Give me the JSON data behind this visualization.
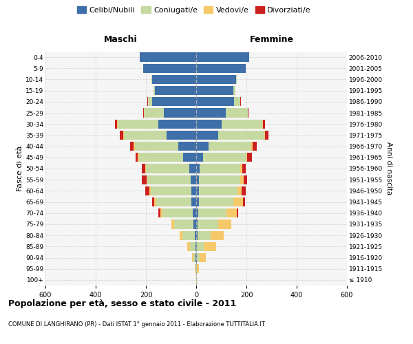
{
  "age_groups": [
    "100+",
    "95-99",
    "90-94",
    "85-89",
    "80-84",
    "75-79",
    "70-74",
    "65-69",
    "60-64",
    "55-59",
    "50-54",
    "45-49",
    "40-44",
    "35-39",
    "30-34",
    "25-29",
    "20-24",
    "15-19",
    "10-14",
    "5-9",
    "0-4"
  ],
  "birth_years": [
    "≤ 1910",
    "1911-1915",
    "1916-1920",
    "1921-1925",
    "1926-1930",
    "1931-1935",
    "1936-1940",
    "1941-1945",
    "1946-1950",
    "1951-1955",
    "1956-1960",
    "1961-1965",
    "1966-1970",
    "1971-1975",
    "1976-1980",
    "1981-1985",
    "1986-1990",
    "1991-1995",
    "1996-2000",
    "2001-2005",
    "2006-2010"
  ],
  "males": {
    "celibi": [
      1,
      1,
      4,
      4,
      6,
      10,
      15,
      18,
      20,
      22,
      28,
      52,
      72,
      118,
      150,
      130,
      175,
      165,
      175,
      210,
      225
    ],
    "coniugati": [
      0,
      2,
      8,
      22,
      48,
      78,
      118,
      142,
      162,
      172,
      172,
      176,
      172,
      170,
      162,
      78,
      18,
      4,
      4,
      0,
      0
    ],
    "vedovi": [
      0,
      2,
      4,
      10,
      12,
      10,
      10,
      8,
      5,
      4,
      4,
      4,
      4,
      3,
      2,
      0,
      0,
      0,
      0,
      0,
      0
    ],
    "divorziati": [
      0,
      0,
      0,
      0,
      0,
      2,
      8,
      8,
      15,
      18,
      12,
      10,
      15,
      12,
      8,
      4,
      2,
      0,
      0,
      0,
      0
    ]
  },
  "females": {
    "nubili": [
      0,
      1,
      3,
      3,
      5,
      5,
      8,
      10,
      12,
      12,
      14,
      28,
      48,
      88,
      102,
      118,
      152,
      148,
      158,
      198,
      212
    ],
    "coniugate": [
      0,
      3,
      12,
      28,
      52,
      82,
      112,
      138,
      152,
      162,
      162,
      172,
      172,
      182,
      162,
      88,
      24,
      8,
      4,
      0,
      0
    ],
    "vedove": [
      2,
      8,
      24,
      48,
      52,
      52,
      42,
      38,
      18,
      14,
      8,
      4,
      4,
      4,
      2,
      0,
      0,
      0,
      0,
      0,
      0
    ],
    "divorziate": [
      0,
      0,
      0,
      0,
      0,
      2,
      5,
      8,
      14,
      16,
      14,
      18,
      18,
      14,
      8,
      3,
      2,
      0,
      0,
      0,
      0
    ]
  },
  "colors": {
    "celibi": "#3e6fa8",
    "coniugati": "#c5d9a0",
    "vedovi": "#f5c96a",
    "divorziati": "#cc2020"
  },
  "xlim": 600,
  "title": "Popolazione per età, sesso e stato civile - 2011",
  "subtitle": "COMUNE DI LANGHIRANO (PR) - Dati ISTAT 1° gennaio 2011 - Elaborazione TUTTITALIA.IT",
  "xlabel_left": "Maschi",
  "xlabel_right": "Femmine",
  "ylabel_left": "Fasce di età",
  "ylabel_right": "Anni di nascita",
  "legend_labels": [
    "Celibi/Nubili",
    "Coniugati/e",
    "Vedovi/e",
    "Divorziati/e"
  ],
  "bg_color": "#f5f5f5"
}
